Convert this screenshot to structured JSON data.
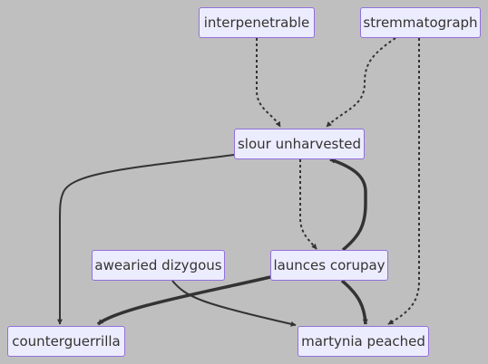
{
  "diagram": {
    "nodes": {
      "interpenetrable": "interpenetrable",
      "stremmatograph": "stremmatograph",
      "slour_unharvested": "slour unharvested",
      "aweaired_dizygous": "awearied dizygous",
      "launces_corupay": "launces corupay",
      "counterguerrilla": "counterguerrilla",
      "martynia_peached": "martynia peached"
    },
    "edges": [
      {
        "from": "interpenetrable",
        "to": "slour unharvested",
        "style": "dotted"
      },
      {
        "from": "stremmatograph",
        "to": "slour unharvested",
        "style": "dotted"
      },
      {
        "from": "stremmatograph",
        "to": "martynia peached",
        "style": "dotted"
      },
      {
        "from": "slour unharvested",
        "to": "launces corupay",
        "style": "dotted"
      },
      {
        "from": "slour unharvested",
        "to": "counterguerrilla",
        "style": "solid"
      },
      {
        "from": "launces corupay",
        "to": "slour unharvested",
        "style": "thick"
      },
      {
        "from": "launces corupay",
        "to": "counterguerrilla",
        "style": "thick"
      },
      {
        "from": "launces corupay",
        "to": "martynia peached",
        "style": "thick"
      },
      {
        "from": "awearied dizygous",
        "to": "martynia peached",
        "style": "solid"
      }
    ]
  },
  "colors": {
    "background": "#bfbfbf",
    "node_fill": "#ececff",
    "node_border": "#9370db",
    "edge": "#333333"
  }
}
